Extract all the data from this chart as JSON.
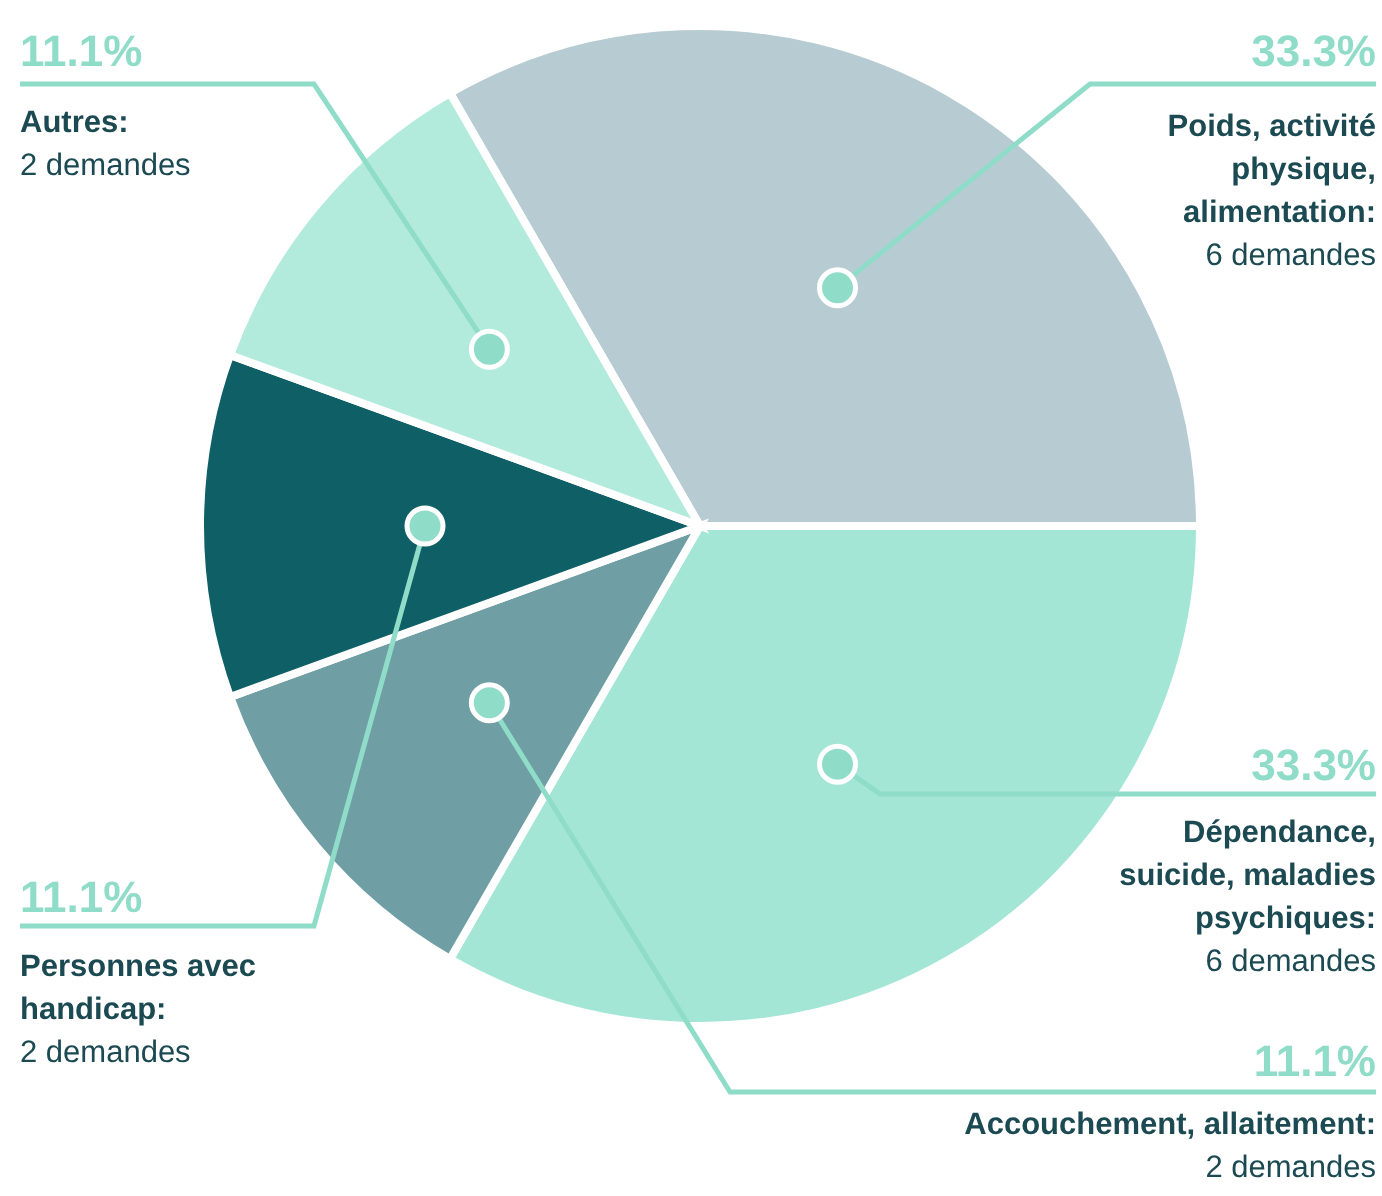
{
  "chart_data": {
    "type": "pie",
    "categories": [
      "Poids, activité physique, alimentation: 6 demandes",
      "Dépendance, suicide, maladies psychiques: 6 demandes",
      "Accouchement, allaitement: 2 demandes",
      "Personnes avec handicap: 2 demandes",
      "Autres: 2 demandes"
    ],
    "values": [
      33.3,
      33.3,
      11.1,
      11.1,
      11.1
    ],
    "colors": [
      "#b7ccd2",
      "#a3e6d5",
      "#6f9ea4",
      "#0f5f67",
      "#b2eadb"
    ],
    "value_labels": [
      "33.3%",
      "33.3%",
      "11.1%",
      "11.1%",
      "11.1%"
    ],
    "legend": false
  }
}
